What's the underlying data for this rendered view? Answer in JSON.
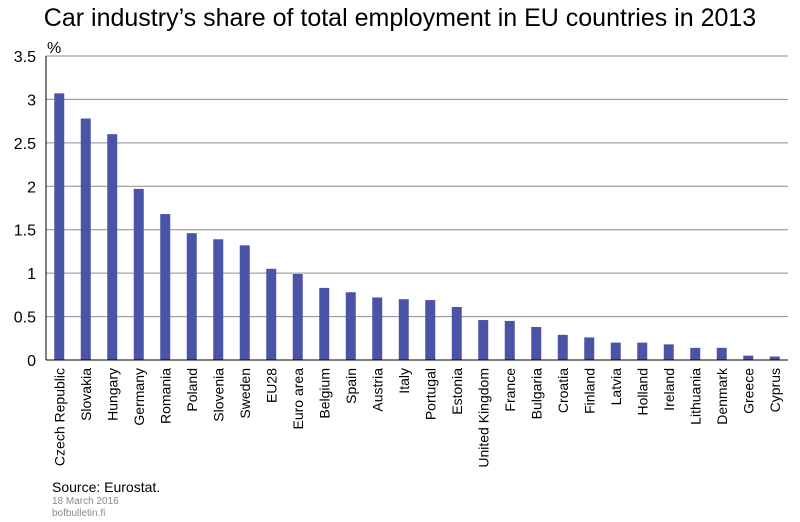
{
  "chart_data": {
    "type": "bar",
    "title": "Car industry’s share of total employment in EU countries in 2013",
    "ylabel": "%",
    "xlabel": "",
    "ylim": [
      0,
      3.5
    ],
    "yticks": [
      0,
      0.5,
      1,
      1.5,
      2,
      2.5,
      3,
      3.5
    ],
    "ytick_labels": [
      "0",
      "0.5",
      "1",
      "1.5",
      "2",
      "2.5",
      "3",
      "3.5"
    ],
    "grid": true,
    "categories": [
      "Czech Republic",
      "Slovakia",
      "Hungary",
      "Germany",
      "Romania",
      "Poland",
      "Slovenia",
      "Sweden",
      "EU28",
      "Euro area",
      "Belgium",
      "Spain",
      "Austria",
      "Italy",
      "Portugal",
      "Estonia",
      "United Kingdom",
      "France",
      "Bulgaria",
      "Croatia",
      "Finland",
      "Latvia",
      "Holland",
      "Ireland",
      "Lithuania",
      "Denmark",
      "Greece",
      "Cyprus"
    ],
    "values": [
      3.07,
      2.78,
      2.6,
      1.97,
      1.68,
      1.46,
      1.39,
      1.32,
      1.05,
      0.99,
      0.83,
      0.78,
      0.72,
      0.7,
      0.69,
      0.61,
      0.46,
      0.45,
      0.38,
      0.29,
      0.26,
      0.2,
      0.2,
      0.18,
      0.14,
      0.14,
      0.05,
      0.04
    ],
    "bar_color": "#4a53a5",
    "source": "Source: Eurostat.",
    "date": "18 March 2016",
    "site": "bofbulletin.fi"
  }
}
